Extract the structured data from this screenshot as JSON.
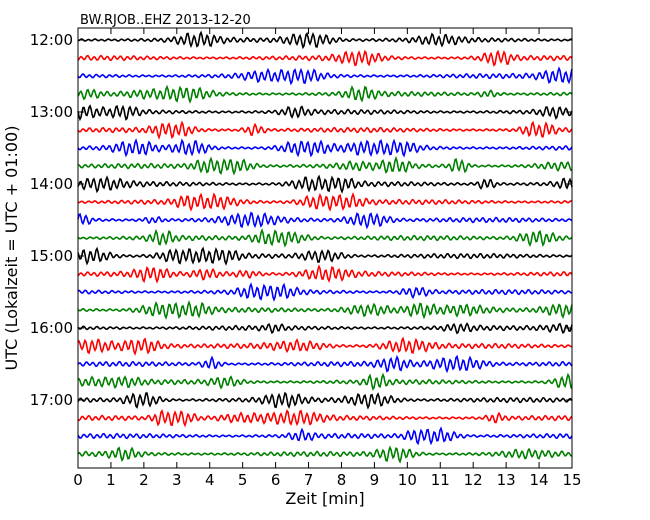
{
  "chart_data": {
    "type": "line",
    "title": "BW.RJOB..EHZ 2013-12-20",
    "xlabel": "Zeit  [min]",
    "ylabel": "UTC (Lokalzeit = UTC + 01:00)",
    "xlim": [
      0,
      15
    ],
    "x_ticks": [
      0,
      1,
      2,
      3,
      4,
      5,
      6,
      7,
      8,
      9,
      10,
      11,
      12,
      13,
      14,
      15
    ],
    "x_tick_labels": [
      "0",
      "1",
      "2",
      "3",
      "4",
      "5",
      "6",
      "7",
      "8",
      "9",
      "10",
      "11",
      "12",
      "13",
      "14",
      "15"
    ],
    "y_tick_labels": [
      "12:00",
      "13:00",
      "14:00",
      "15:00",
      "16:00",
      "17:00"
    ],
    "rows_per_hour": 4,
    "row_count": 24,
    "row_colors": [
      "#000000",
      "#ff0000",
      "#0000ff",
      "#008000"
    ],
    "grid": false,
    "legend": "none"
  }
}
